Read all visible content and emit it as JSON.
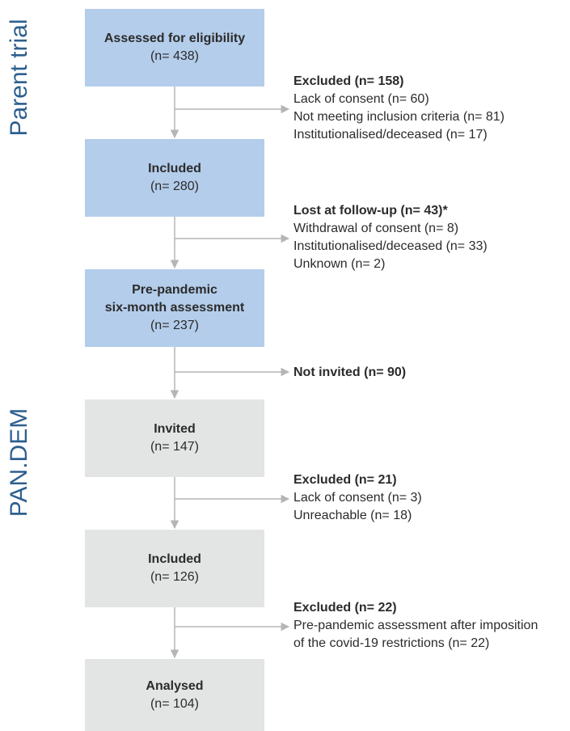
{
  "sections": {
    "parent": "Parent trial",
    "pandem": "PAN.DEM"
  },
  "boxes": [
    {
      "title": "Assessed for eligibility",
      "count": "(n= 438)"
    },
    {
      "title": "Included",
      "count": "(n= 280)"
    },
    {
      "title": "Pre-pandemic six-month assessment",
      "title_line1": "Pre-pandemic",
      "title_line2": "six-month assessment",
      "count": "(n= 237)"
    },
    {
      "title": "Invited",
      "count": "(n= 147)"
    },
    {
      "title": "Included",
      "count": "(n= 126)"
    },
    {
      "title": "Analysed",
      "count": "(n= 104)"
    }
  ],
  "notes": [
    {
      "head": "Excluded (n= 158)",
      "lines": [
        "Lack of consent (n= 60)",
        "Not meeting inclusion criteria (n= 81)",
        "Institutionalised/deceased (n= 17)"
      ]
    },
    {
      "head": "Lost at follow-up (n= 43)*",
      "lines": [
        "Withdrawal of consent (n= 8)",
        "Institutionalised/deceased (n= 33)",
        "Unknown (n= 2)"
      ]
    },
    {
      "head": "Not invited (n= 90)",
      "lines": []
    },
    {
      "head": "Excluded (n= 21)",
      "lines": [
        "Lack of consent (n= 3)",
        "Unreachable (n= 18)"
      ]
    },
    {
      "head": "Excluded (n= 22)",
      "lines": [
        "Pre-pandemic assessment after imposition",
        "of the covid-19 restrictions (n= 22)"
      ]
    }
  ],
  "colors": {
    "parent_box": "#b4cdeb",
    "pandem_box": "#e3e5e4",
    "section_label": "#2d5f8e",
    "connector": "#b5b5b5"
  }
}
